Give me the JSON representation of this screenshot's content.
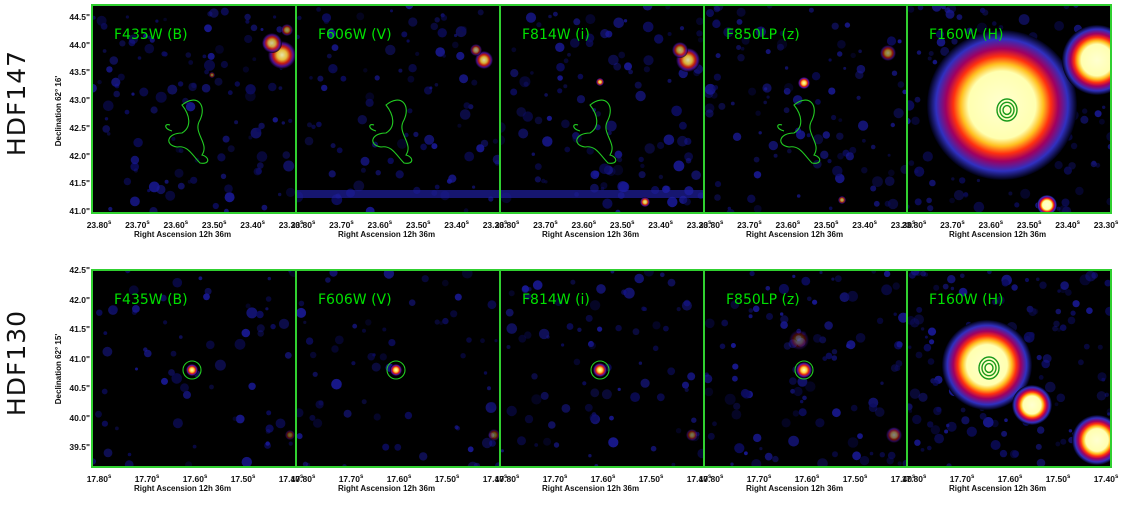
{
  "rows": [
    {
      "label": "HDF147",
      "dec_label": "Declination 62° 16'",
      "y_ticks": [
        "44.5\"",
        "44.0\"",
        "43.5\"",
        "43.0\"",
        "42.5\"",
        "42.0\"",
        "41.5\"",
        "41.0\""
      ],
      "x_ticks": [
        "23.80",
        "23.70",
        "23.60",
        "23.50",
        "23.40",
        "23.30"
      ],
      "x_tick_unit": "s",
      "ra_label": "Right Ascension 12h 36m",
      "panels": [
        {
          "filter": "F435W (B)"
        },
        {
          "filter": "F606W (V)"
        },
        {
          "filter": "F814W (i)"
        },
        {
          "filter": "F850LP (z)"
        },
        {
          "filter": "F160W (H)"
        }
      ]
    },
    {
      "label": "HDF130",
      "dec_label": "Declination 62° 15'",
      "y_ticks": [
        "42.5\"",
        "42.0\"",
        "41.5\"",
        "41.0\"",
        "40.5\"",
        "40.0\"",
        "39.5\""
      ],
      "x_ticks": [
        "17.80",
        "17.70",
        "17.60",
        "17.50",
        "17.40"
      ],
      "x_tick_unit": "s",
      "ra_label": "Right Ascension 12h 36m",
      "panels": [
        {
          "filter": "F435W (B)"
        },
        {
          "filter": "F606W (V)"
        },
        {
          "filter": "F814W (i)"
        },
        {
          "filter": "F850LP (z)"
        },
        {
          "filter": "F160W (H)"
        }
      ]
    }
  ],
  "colors": {
    "frame": "#30d030",
    "contour": "#22cc22",
    "label_text": "#00e000",
    "background": "#000000"
  }
}
